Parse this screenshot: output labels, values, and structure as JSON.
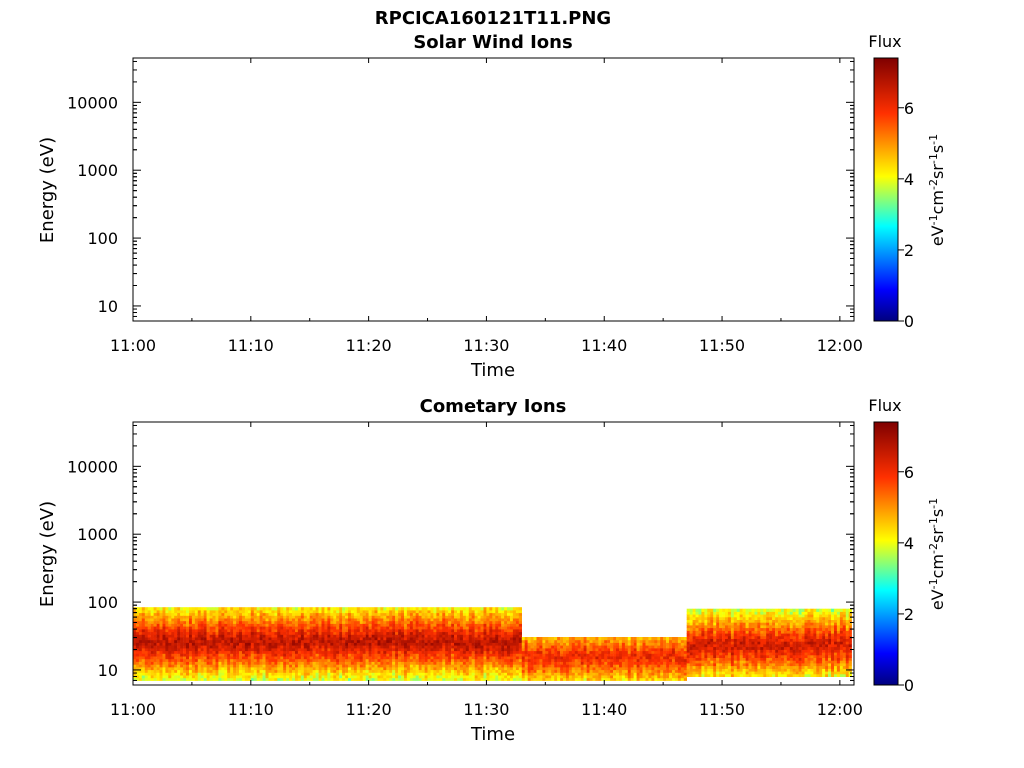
{
  "figure_title": "RPCICA160121T11.PNG",
  "chart_data": [
    {
      "type": "heatmap",
      "title": "Solar Wind Ions",
      "xlabel": "Time",
      "ylabel": "Energy (eV)",
      "x_ticks": [
        "11:00",
        "11:10",
        "11:20",
        "11:30",
        "11:40",
        "11:50",
        "12:00"
      ],
      "y_ticks": [
        "10",
        "100",
        "1000",
        "10000"
      ],
      "y_scale": "log",
      "xlim": [
        "11:00",
        "12:00"
      ],
      "ylim": [
        6,
        45000
      ],
      "colorbar": {
        "label": "Flux",
        "units": "eV-1cm-2sr-1s-1",
        "ticks": [
          "0",
          "2",
          "4",
          "6"
        ],
        "range": [
          0,
          7.4
        ]
      },
      "data": []
    },
    {
      "type": "heatmap",
      "title": "Cometary Ions",
      "xlabel": "Time",
      "ylabel": "Energy (eV)",
      "x_ticks": [
        "11:00",
        "11:10",
        "11:20",
        "11:30",
        "11:40",
        "11:50",
        "12:00"
      ],
      "y_ticks": [
        "10",
        "100",
        "1000",
        "10000"
      ],
      "y_scale": "log",
      "xlim": [
        "11:00",
        "12:00"
      ],
      "ylim": [
        6,
        45000
      ],
      "colorbar": {
        "label": "Flux",
        "units": "eV-1cm-2sr-1s-1",
        "ticks": [
          "0",
          "2",
          "4",
          "6"
        ],
        "range": [
          0,
          7.4
        ]
      },
      "bands": [
        {
          "start": "11:00",
          "end": "11:33",
          "energy_min": 7,
          "energy_max": 80,
          "peak_energy": 25,
          "peak_flux": 6.8
        },
        {
          "start": "11:33",
          "end": "11:47",
          "energy_min": 7,
          "energy_max": 30,
          "peak_energy": 15,
          "peak_flux": 6.2
        },
        {
          "start": "11:47",
          "end": "12:01",
          "energy_min": 8,
          "energy_max": 80,
          "peak_energy": 22,
          "peak_flux": 6.6
        }
      ]
    }
  ]
}
